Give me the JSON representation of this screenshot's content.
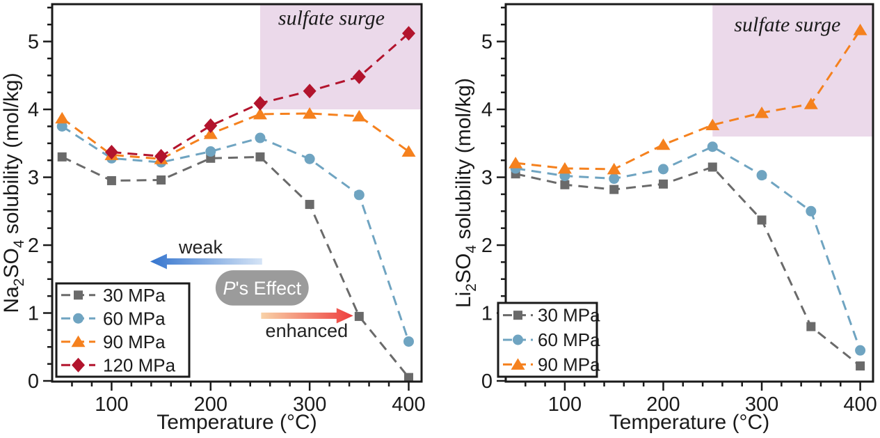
{
  "chart_data": [
    {
      "type": "line",
      "id": "na2so4",
      "xlabel": "Temperature (°C)",
      "ylabel": "Na2SO4 solubility (mol/kg)",
      "ylabel_parts": [
        {
          "t": "Na"
        },
        {
          "t": "2",
          "sub": true
        },
        {
          "t": "SO"
        },
        {
          "t": "4",
          "sub": true
        },
        {
          "t": " solubility (mol/kg)"
        }
      ],
      "xlim": [
        40,
        413
      ],
      "ylim": [
        0,
        5.55
      ],
      "x_major_ticks": [
        100,
        200,
        300,
        400
      ],
      "y_major_ticks": [
        0,
        1,
        2,
        3,
        4,
        5
      ],
      "x_minor_step": 20,
      "y_minor_step": 0.25,
      "series": [
        {
          "name": "30 MPa",
          "marker": "square",
          "color": "#6A6A6A",
          "x": [
            50,
            100,
            150,
            200,
            250,
            300,
            350,
            400
          ],
          "y": [
            3.3,
            2.95,
            2.96,
            3.28,
            3.3,
            2.6,
            0.95,
            0.05
          ]
        },
        {
          "name": "60 MPa",
          "marker": "circle",
          "color": "#6FA4C1",
          "x": [
            50,
            100,
            150,
            200,
            250,
            300,
            350,
            400
          ],
          "y": [
            3.75,
            3.28,
            3.22,
            3.38,
            3.58,
            3.27,
            2.74,
            0.58
          ]
        },
        {
          "name": "90 MPa",
          "marker": "triangle",
          "color": "#F5811E",
          "x": [
            50,
            100,
            150,
            200,
            250,
            300,
            350,
            400
          ],
          "y": [
            3.87,
            3.33,
            3.27,
            3.64,
            3.93,
            3.94,
            3.9,
            3.38
          ]
        },
        {
          "name": "120 MPa",
          "marker": "diamond",
          "color": "#B2142D",
          "x": [
            100,
            150,
            200,
            250,
            300,
            350,
            400
          ],
          "y": [
            3.37,
            3.31,
            3.76,
            4.09,
            4.27,
            4.48,
            5.12
          ]
        }
      ],
      "legend": {
        "labels": [
          "30 MPa",
          "60 MPa",
          "90 MPa",
          "120 MPa"
        ]
      },
      "surge_region": {
        "label": "sulfate surge",
        "x_from": 250,
        "y_from": 4.0,
        "fill": "#EBD9EA",
        "label_x": 322,
        "label_y": 5.35,
        "label_color": "#1D1D33"
      },
      "annotations": {
        "weak_label": {
          "text": "weak",
          "x": 190,
          "y": 1.97
        },
        "weak_arrow": {
          "direction": "left",
          "x_tail": 252,
          "x_tip": 139,
          "y": 1.76,
          "tail_color": "#D5E4F6",
          "tip_color": "#3575CE"
        },
        "effect_pill": {
          "text": "P's Effect",
          "text_parts": [
            {
              "t": "P",
              "italic": true
            },
            {
              "t": "'s Effect"
            }
          ],
          "x": 252,
          "y": 1.37,
          "width_x": 94,
          "height_y": 0.52,
          "bg": "#9B9B9B",
          "fg": "#FFFFFF"
        },
        "enhanced_arrow": {
          "direction": "right",
          "x_tail": 251,
          "x_tip": 344,
          "y": 0.96,
          "tail_color": "#F8D2A8",
          "tip_color": "#EE3D3D"
        },
        "enhanced_label": {
          "text": "enhanced",
          "x": 297,
          "y": 0.74
        }
      }
    },
    {
      "type": "line",
      "id": "li2so4",
      "xlabel": "Temperature (°C)",
      "ylabel": "Li2SO4 solubility (mol/kg)",
      "ylabel_parts": [
        {
          "t": "Li"
        },
        {
          "t": "2",
          "sub": true
        },
        {
          "t": "SO"
        },
        {
          "t": "4",
          "sub": true
        },
        {
          "t": " solubility (mol/kg)"
        }
      ],
      "xlim": [
        40,
        413
      ],
      "ylim": [
        0,
        5.55
      ],
      "x_major_ticks": [
        100,
        200,
        300,
        400
      ],
      "y_major_ticks": [
        0,
        1,
        2,
        3,
        4,
        5
      ],
      "x_minor_step": 20,
      "y_minor_step": 0.25,
      "series": [
        {
          "name": "30 MPa",
          "marker": "square",
          "color": "#6A6A6A",
          "x": [
            50,
            100,
            150,
            200,
            250,
            300,
            350,
            400
          ],
          "y": [
            3.05,
            2.89,
            2.82,
            2.9,
            3.15,
            2.37,
            0.8,
            0.22
          ]
        },
        {
          "name": "60 MPa",
          "marker": "circle",
          "color": "#6FA4C1",
          "x": [
            50,
            100,
            150,
            200,
            250,
            300,
            350,
            400
          ],
          "y": [
            3.13,
            3.02,
            2.98,
            3.12,
            3.45,
            3.03,
            2.5,
            0.45
          ]
        },
        {
          "name": "90 MPa",
          "marker": "triangle",
          "color": "#F5811E",
          "x": [
            50,
            100,
            150,
            200,
            250,
            300,
            350,
            400
          ],
          "y": [
            3.21,
            3.13,
            3.12,
            3.48,
            3.77,
            3.95,
            4.08,
            5.17
          ]
        }
      ],
      "legend": {
        "labels": [
          "30 MPa",
          "60 MPa",
          "90 MPa"
        ]
      },
      "surge_region": {
        "label": "sulfate surge",
        "x_from": 250,
        "y_from": 3.6,
        "fill": "#EBD9EA",
        "label_x": 326,
        "label_y": 5.25,
        "label_color": "#1D1D33"
      },
      "annotations": null
    }
  ]
}
